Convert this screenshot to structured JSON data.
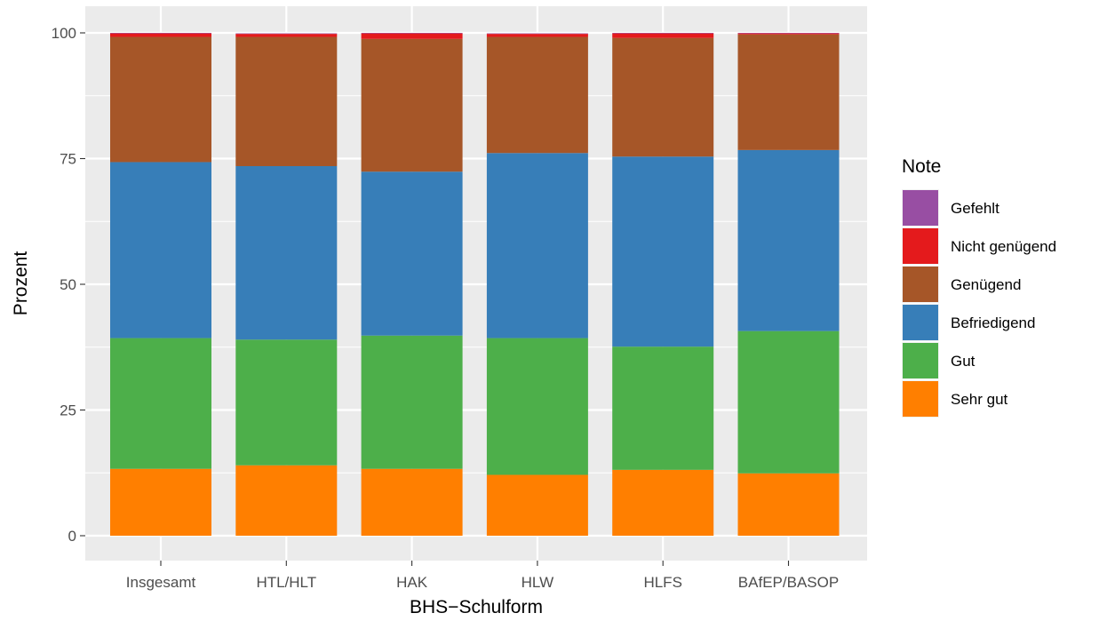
{
  "chart_data": {
    "type": "bar",
    "stacked": true,
    "xlabel": "BHS−Schulform",
    "ylabel": "Prozent",
    "ylim": [
      0,
      100
    ],
    "yticks": [
      0,
      25,
      50,
      75,
      100
    ],
    "grid": true,
    "legend_position": "right",
    "legend_title": "Note",
    "categories": [
      "Insgesamt",
      "HTL/HLT",
      "HAK",
      "HLW",
      "HLFS",
      "BAfEP/BASOP"
    ],
    "series": [
      {
        "name": "Sehr gut",
        "color": "#FF7F00",
        "values": [
          13.3,
          14.0,
          13.3,
          12.1,
          13.1,
          12.4
        ]
      },
      {
        "name": "Gut",
        "color": "#4DAF4A",
        "values": [
          26.0,
          25.0,
          26.5,
          27.2,
          24.5,
          28.3
        ]
      },
      {
        "name": "Befriedigend",
        "color": "#377EB8",
        "values": [
          35.0,
          34.5,
          32.6,
          36.8,
          37.8,
          36.0
        ]
      },
      {
        "name": "Genügend",
        "color": "#A65628",
        "values": [
          24.9,
          25.7,
          26.4,
          23.1,
          23.6,
          23.0
        ]
      },
      {
        "name": "Nicht genügend",
        "color": "#E41A1C",
        "values": [
          0.7,
          0.6,
          1.1,
          0.6,
          0.9,
          0.2
        ]
      },
      {
        "name": "Gefehlt",
        "color": "#984EA3",
        "values": [
          0.1,
          0.1,
          0.1,
          0.1,
          0.1,
          0.1
        ]
      }
    ],
    "legend_order": [
      "Gefehlt",
      "Nicht genügend",
      "Genügend",
      "Befriedigend",
      "Gut",
      "Sehr gut"
    ]
  }
}
